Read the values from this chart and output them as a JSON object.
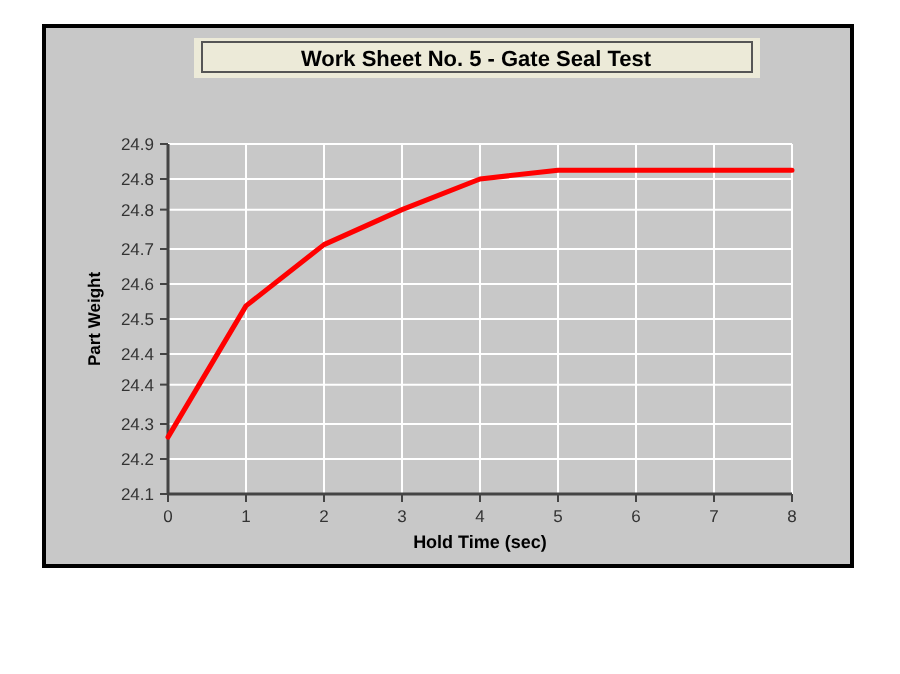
{
  "chart_data": {
    "type": "line",
    "title": "Work Sheet No. 5 - Gate Seal Test",
    "xlabel": "Hold Time (sec)",
    "ylabel": "Part Weight",
    "x": [
      0,
      1,
      2,
      3,
      4,
      5,
      6,
      7,
      8
    ],
    "series": [
      {
        "color": "#ff0000",
        "values": [
          24.23,
          24.53,
          24.67,
          24.75,
          24.82,
          24.84,
          24.84,
          24.84,
          24.84
        ]
      }
    ],
    "xlim": [
      0,
      8
    ],
    "xticks": [
      0,
      1,
      2,
      3,
      4,
      5,
      6,
      7,
      8
    ],
    "ylim": [
      24.1,
      24.9
    ],
    "yticks": [
      {
        "value": 24.1,
        "label": "24.1"
      },
      {
        "value": 24.18,
        "label": "24.2"
      },
      {
        "value": 24.26,
        "label": "24.3"
      },
      {
        "value": 24.35,
        "label": "24.4"
      },
      {
        "value": 24.42,
        "label": "24.4"
      },
      {
        "value": 24.5,
        "label": "24.5"
      },
      {
        "value": 24.58,
        "label": "24.6"
      },
      {
        "value": 24.66,
        "label": "24.7"
      },
      {
        "value": 24.75,
        "label": "24.8"
      },
      {
        "value": 24.82,
        "label": "24.8"
      },
      {
        "value": 24.9,
        "label": "24.9"
      }
    ],
    "grid": true,
    "marker": "none",
    "line_style": "solid"
  }
}
